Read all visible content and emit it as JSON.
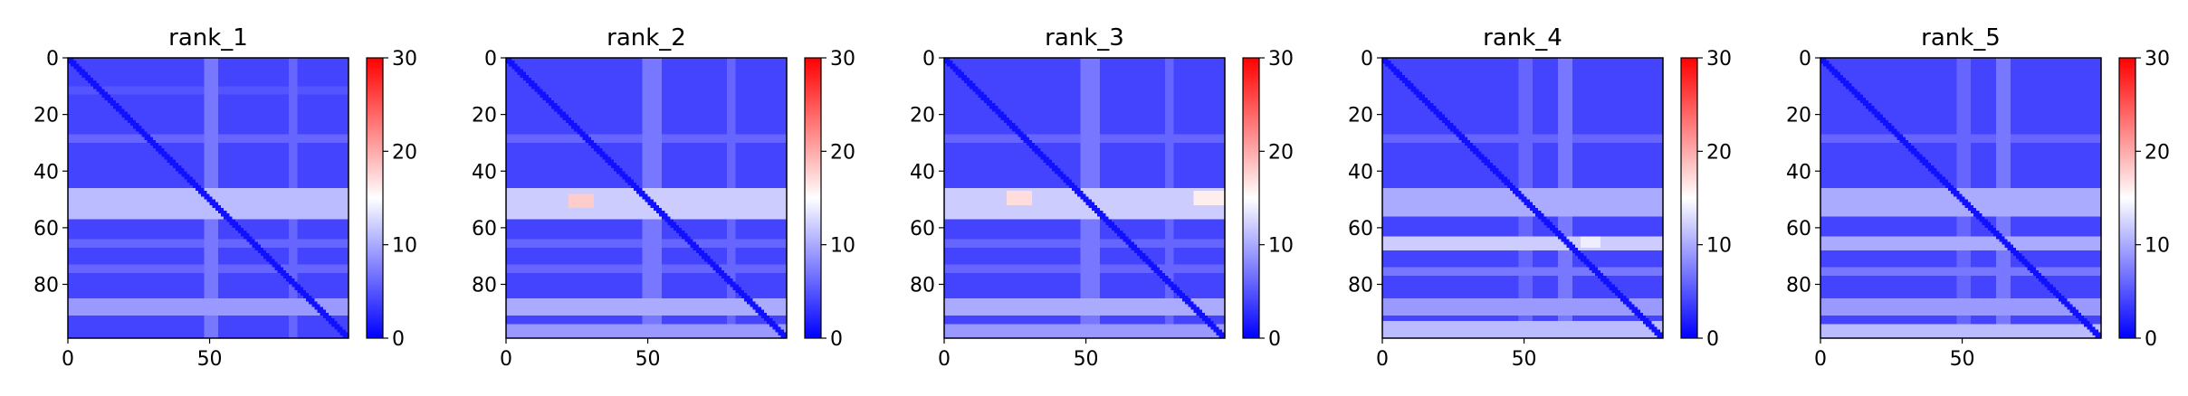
{
  "chart_data": [
    {
      "type": "heatmap",
      "title": "rank_1",
      "xlabel": "",
      "ylabel": "",
      "rows": 99,
      "cols": 99,
      "xlim": [
        0,
        99
      ],
      "ylim": [
        99,
        0
      ],
      "xticks": [
        0,
        50
      ],
      "yticks": [
        0,
        20,
        40,
        60,
        80
      ],
      "colorbar": {
        "min": 0,
        "max": 30,
        "ticks": [
          0,
          10,
          20,
          30
        ],
        "colormap": [
          "#0000ff",
          "#ffffff",
          "#ff0000"
        ]
      },
      "diagonal_value": 1,
      "background_value": 4,
      "bands": [
        {
          "rows": [
            46,
            56
          ],
          "value": 11
        },
        {
          "rows": [
            85,
            90
          ],
          "value": 9
        },
        {
          "rows": [
            64,
            66
          ],
          "value": 6
        },
        {
          "rows": [
            73,
            75
          ],
          "value": 6
        },
        {
          "rows": [
            27,
            29
          ],
          "value": 6
        },
        {
          "rows": [
            10,
            12
          ],
          "value": 5
        }
      ],
      "columns": [
        {
          "cols": [
            48,
            52
          ],
          "value": 7
        },
        {
          "cols": [
            78,
            80
          ],
          "value": 6
        }
      ],
      "hotspots": []
    },
    {
      "type": "heatmap",
      "title": "rank_2",
      "xlabel": "",
      "ylabel": "",
      "rows": 99,
      "cols": 99,
      "xlim": [
        0,
        99
      ],
      "ylim": [
        99,
        0
      ],
      "xticks": [
        0,
        50
      ],
      "yticks": [
        0,
        20,
        40,
        60,
        80
      ],
      "colorbar": {
        "min": 0,
        "max": 30,
        "ticks": [
          0,
          10,
          20,
          30
        ],
        "colormap": [
          "#0000ff",
          "#ffffff",
          "#ff0000"
        ]
      },
      "diagonal_value": 1,
      "background_value": 4,
      "bands": [
        {
          "rows": [
            46,
            56
          ],
          "value": 12
        },
        {
          "rows": [
            85,
            90
          ],
          "value": 10
        },
        {
          "rows": [
            94,
            98
          ],
          "value": 9
        },
        {
          "rows": [
            64,
            66
          ],
          "value": 6
        },
        {
          "rows": [
            73,
            75
          ],
          "value": 6
        },
        {
          "rows": [
            27,
            29
          ],
          "value": 6
        }
      ],
      "columns": [
        {
          "cols": [
            48,
            54
          ],
          "value": 7
        },
        {
          "cols": [
            78,
            80
          ],
          "value": 6
        }
      ],
      "hotspots": [
        {
          "rows": [
            48,
            52
          ],
          "cols": [
            22,
            30
          ],
          "value": 18
        }
      ]
    },
    {
      "type": "heatmap",
      "title": "rank_3",
      "xlabel": "",
      "ylabel": "",
      "rows": 99,
      "cols": 99,
      "xlim": [
        0,
        99
      ],
      "ylim": [
        99,
        0
      ],
      "xticks": [
        0,
        50
      ],
      "yticks": [
        0,
        20,
        40,
        60,
        80
      ],
      "colorbar": {
        "min": 0,
        "max": 30,
        "ticks": [
          0,
          10,
          20,
          30
        ],
        "colormap": [
          "#0000ff",
          "#ffffff",
          "#ff0000"
        ]
      },
      "diagonal_value": 1,
      "background_value": 4,
      "bands": [
        {
          "rows": [
            46,
            56
          ],
          "value": 12
        },
        {
          "rows": [
            85,
            90
          ],
          "value": 10
        },
        {
          "rows": [
            94,
            98
          ],
          "value": 9
        },
        {
          "rows": [
            64,
            66
          ],
          "value": 6
        },
        {
          "rows": [
            73,
            75
          ],
          "value": 6
        },
        {
          "rows": [
            27,
            29
          ],
          "value": 6
        }
      ],
      "columns": [
        {
          "cols": [
            48,
            54
          ],
          "value": 7
        },
        {
          "cols": [
            78,
            80
          ],
          "value": 6
        }
      ],
      "hotspots": [
        {
          "rows": [
            47,
            51
          ],
          "cols": [
            22,
            30
          ],
          "value": 17
        },
        {
          "rows": [
            47,
            51
          ],
          "cols": [
            88,
            98
          ],
          "value": 16
        }
      ]
    },
    {
      "type": "heatmap",
      "title": "rank_4",
      "xlabel": "",
      "ylabel": "",
      "rows": 99,
      "cols": 99,
      "xlim": [
        0,
        99
      ],
      "ylim": [
        99,
        0
      ],
      "xticks": [
        0,
        50
      ],
      "yticks": [
        0,
        20,
        40,
        60,
        80
      ],
      "colorbar": {
        "min": 0,
        "max": 30,
        "ticks": [
          0,
          10,
          20,
          30
        ],
        "colormap": [
          "#0000ff",
          "#ffffff",
          "#ff0000"
        ]
      },
      "diagonal_value": 1,
      "background_value": 4,
      "bands": [
        {
          "rows": [
            46,
            55
          ],
          "value": 10
        },
        {
          "rows": [
            63,
            67
          ],
          "value": 12
        },
        {
          "rows": [
            74,
            76
          ],
          "value": 7
        },
        {
          "rows": [
            85,
            90
          ],
          "value": 9
        },
        {
          "rows": [
            93,
            98
          ],
          "value": 11
        },
        {
          "rows": [
            27,
            29
          ],
          "value": 6
        }
      ],
      "columns": [
        {
          "cols": [
            48,
            52
          ],
          "value": 6
        },
        {
          "cols": [
            62,
            66
          ],
          "value": 7
        }
      ],
      "hotspots": [
        {
          "rows": [
            63,
            66
          ],
          "cols": [
            70,
            76
          ],
          "value": 14
        }
      ]
    },
    {
      "type": "heatmap",
      "title": "rank_5",
      "xlabel": "",
      "ylabel": "",
      "rows": 99,
      "cols": 99,
      "xlim": [
        0,
        99
      ],
      "ylim": [
        99,
        0
      ],
      "xticks": [
        0,
        50
      ],
      "yticks": [
        0,
        20,
        40,
        60,
        80
      ],
      "colorbar": {
        "min": 0,
        "max": 30,
        "ticks": [
          0,
          10,
          20,
          30
        ],
        "colormap": [
          "#0000ff",
          "#ffffff",
          "#ff0000"
        ]
      },
      "diagonal_value": 1,
      "background_value": 4,
      "bands": [
        {
          "rows": [
            46,
            55
          ],
          "value": 10
        },
        {
          "rows": [
            63,
            67
          ],
          "value": 10
        },
        {
          "rows": [
            74,
            76
          ],
          "value": 7
        },
        {
          "rows": [
            85,
            90
          ],
          "value": 9
        },
        {
          "rows": [
            94,
            98
          ],
          "value": 11
        },
        {
          "rows": [
            27,
            29
          ],
          "value": 6
        }
      ],
      "columns": [
        {
          "cols": [
            48,
            52
          ],
          "value": 6
        },
        {
          "cols": [
            62,
            66
          ],
          "value": 7
        }
      ],
      "hotspots": []
    }
  ]
}
